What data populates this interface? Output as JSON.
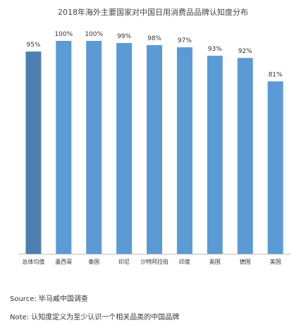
{
  "chart_data": {
    "type": "bar",
    "title": "2018年海外主要国家对中国日用消费品品牌认知度分布",
    "categories": [
      "总体均值",
      "墨西哥",
      "泰国",
      "印尼",
      "沙特阿拉伯",
      "印度",
      "英国",
      "德国",
      "美国"
    ],
    "values": [
      95,
      100,
      100,
      99,
      98,
      97,
      93,
      92,
      81
    ],
    "value_labels": [
      "95%",
      "100%",
      "100%",
      "99%",
      "98%",
      "97%",
      "93%",
      "92%",
      "81%"
    ],
    "ylim": [
      0,
      100
    ],
    "grid": false,
    "legend": "none",
    "colors": {
      "highlight": "#4c7fb0",
      "bar": "#5b9bd5",
      "axis": "#bfbfbf",
      "text": "#333333"
    }
  },
  "footer": {
    "source": "Source: 毕马威中国调查",
    "note": "Note: 认知度定义为至少认识一个相关品类的中国品牌"
  }
}
